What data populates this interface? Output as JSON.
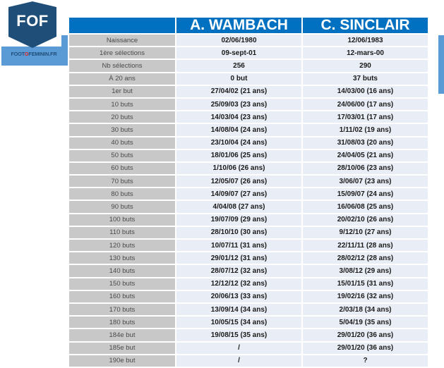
{
  "logo": {
    "short": "FOF",
    "site_parts": [
      "FOOT",
      "O",
      "FEMININ.FR"
    ],
    "colors": {
      "hexagon": "#1f4e79",
      "accent_o": "#e02020"
    }
  },
  "colors": {
    "header_bg": "#0070c0",
    "label_bg": "#c8c8c8",
    "value_bg": "#e9edf5",
    "deco_blue": "#5b9bd5"
  },
  "table": {
    "headers": [
      "",
      "A. WAMBACH",
      "C. SINCLAIR"
    ],
    "rows": [
      {
        "label": "Naissance",
        "wambach": "02/06/1980",
        "sinclair": "12/06/1983"
      },
      {
        "label": "1ère sélections",
        "wambach": "09-sept-01",
        "sinclair": "12-mars-00"
      },
      {
        "label": "Nb sélections",
        "wambach": "256",
        "sinclair": "290"
      },
      {
        "label": "À 20 ans",
        "wambach": "0 but",
        "sinclair": "37 buts"
      },
      {
        "label": "1er but",
        "wambach": "27/04/02 (21 ans)",
        "sinclair": "14/03/00 (16 ans)"
      },
      {
        "label": "10 buts",
        "wambach": "25/09/03 (23 ans)",
        "sinclair": "24/06/00 (17 ans)"
      },
      {
        "label": "20 buts",
        "wambach": "14/03/04 (23 ans)",
        "sinclair": "17/03/01 (17 ans)"
      },
      {
        "label": "30 buts",
        "wambach": "14/08/04 (24 ans)",
        "sinclair": "1/11/02 (19 ans)"
      },
      {
        "label": "40 buts",
        "wambach": "23/10/04 (24 ans)",
        "sinclair": "31/08/03 (20 ans)"
      },
      {
        "label": "50 buts",
        "wambach": "18/01/06 (25 ans)",
        "sinclair": "24/04/05 (21 ans)"
      },
      {
        "label": "60 buts",
        "wambach": "1/10/06 (26 ans)",
        "sinclair": "28/10/06 (23 ans)"
      },
      {
        "label": "70 buts",
        "wambach": "12/05/07 (26 ans)",
        "sinclair": "3/06/07 (23 ans)"
      },
      {
        "label": "80 buts",
        "wambach": "14/09/07 (27 ans)",
        "sinclair": "15/09/07 (24 ans)"
      },
      {
        "label": "90 buts",
        "wambach": "4/04/08 (27 ans)",
        "sinclair": "16/06/08 (25 ans)"
      },
      {
        "label": "100 buts",
        "wambach": "19/07/09 (29 ans)",
        "sinclair": "20/02/10 (26 ans)"
      },
      {
        "label": "110 buts",
        "wambach": "28/10/10 (30 ans)",
        "sinclair": "9/12/10 (27 ans)"
      },
      {
        "label": "120 buts",
        "wambach": "10/07/11 (31 ans)",
        "sinclair": "22/11/11 (28 ans)"
      },
      {
        "label": "130 buts",
        "wambach": "29/01/12 (31 ans)",
        "sinclair": "28/02/12 (28 ans)"
      },
      {
        "label": "140 buts",
        "wambach": "28/07/12 (32 ans)",
        "sinclair": "3/08/12 (29 ans)"
      },
      {
        "label": "150 buts",
        "wambach": "12/12/12 (32 ans)",
        "sinclair": "15/01/15 (31 ans)"
      },
      {
        "label": "160 buts",
        "wambach": "20/06/13 (33 ans)",
        "sinclair": "19/02/16 (32 ans)"
      },
      {
        "label": "170 buts",
        "wambach": "13/09/14 (34 ans)",
        "sinclair": "2/03/18 (34 ans)"
      },
      {
        "label": "180 buts",
        "wambach": "10/05/15 (34 ans)",
        "sinclair": "5/04/19 (35 ans)"
      },
      {
        "label": "184e but",
        "wambach": "19/08/15 (35 ans)",
        "sinclair": "29/01/20 (36 ans)"
      },
      {
        "label": "185e but",
        "wambach": "/",
        "sinclair": "29/01/20 (36 ans)"
      },
      {
        "label": "190e but",
        "wambach": "/",
        "sinclair": "?"
      }
    ]
  }
}
